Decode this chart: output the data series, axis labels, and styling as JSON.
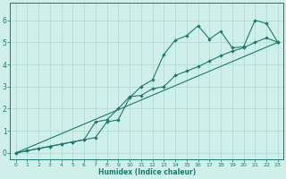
{
  "xlabel": "Humidex (Indice chaleur)",
  "bg_color": "#cff0ea",
  "line_color": "#1a7a6e",
  "grid_color": "#aad8d0",
  "xlim": [
    -0.5,
    23.5
  ],
  "ylim": [
    -0.3,
    6.8
  ],
  "xticks": [
    0,
    1,
    2,
    3,
    4,
    5,
    6,
    7,
    8,
    9,
    10,
    11,
    12,
    13,
    14,
    15,
    16,
    17,
    18,
    19,
    20,
    21,
    22,
    23
  ],
  "yticks": [
    0,
    1,
    2,
    3,
    4,
    5,
    6
  ],
  "line1_x": [
    0,
    1,
    2,
    3,
    4,
    5,
    6,
    7,
    8,
    9,
    10,
    11,
    12,
    13,
    14,
    15,
    16,
    17,
    18,
    19,
    20,
    21,
    22,
    23
  ],
  "line1_y": [
    0.0,
    0.1,
    0.2,
    0.3,
    0.4,
    0.5,
    0.6,
    0.7,
    1.4,
    1.5,
    2.5,
    3.0,
    3.3,
    4.45,
    5.1,
    5.3,
    5.75,
    5.15,
    5.5,
    4.75,
    4.8,
    6.0,
    5.85,
    5.0
  ],
  "line2_x": [
    0,
    1,
    2,
    3,
    4,
    5,
    6,
    7,
    8,
    9,
    10,
    11,
    12,
    13,
    14,
    15,
    16,
    17,
    18,
    19,
    20,
    21,
    22,
    23
  ],
  "line2_y": [
    0.0,
    0.1,
    0.2,
    0.3,
    0.4,
    0.5,
    0.6,
    1.4,
    1.5,
    2.0,
    2.55,
    2.6,
    2.9,
    3.0,
    3.5,
    3.7,
    3.9,
    4.15,
    4.4,
    4.6,
    4.75,
    5.0,
    5.2,
    5.0
  ],
  "line3_x": [
    0,
    23
  ],
  "line3_y": [
    0.0,
    5.0
  ]
}
